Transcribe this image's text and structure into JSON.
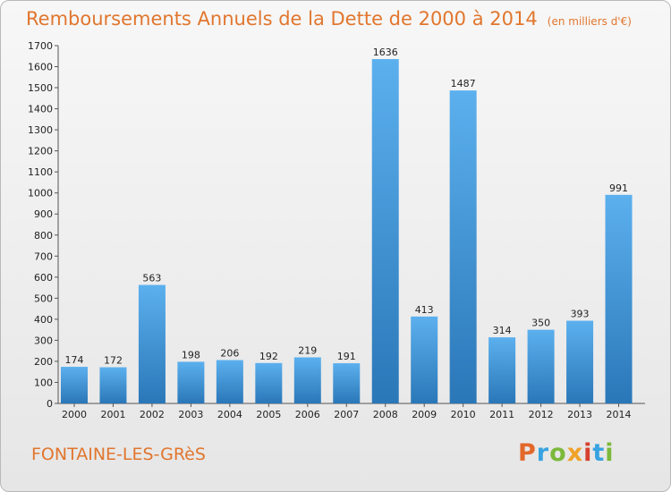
{
  "header": {
    "title": "Remboursements Annuels de la Dette de 2000 à 2014",
    "unit": "(en milliers d'€)"
  },
  "footer": {
    "place": "FONTAINE-LES-GRèS",
    "logo": "Proxiti"
  },
  "colors": {
    "title": "#e1762e",
    "bar_top": "#5cb0ee",
    "bar_bottom": "#2a77b8",
    "logo_letters": [
      "#e2682b",
      "#37a3e0",
      "#7cb93b",
      "#f0a229",
      "#d6402e",
      "#37a3e0",
      "#7cb93b"
    ]
  },
  "chart_data": {
    "type": "bar",
    "categories": [
      "2000",
      "2001",
      "2002",
      "2003",
      "2004",
      "2005",
      "2006",
      "2007",
      "2008",
      "2009",
      "2010",
      "2011",
      "2012",
      "2013",
      "2014"
    ],
    "values": [
      174,
      172,
      563,
      198,
      206,
      192,
      219,
      191,
      1636,
      413,
      1487,
      314,
      350,
      393,
      991
    ],
    "ylim": [
      0,
      1700
    ],
    "yticks": [
      0,
      100,
      200,
      300,
      400,
      500,
      600,
      700,
      800,
      900,
      1000,
      1100,
      1200,
      1300,
      1400,
      1500,
      1600,
      1700
    ],
    "grid": false,
    "title": "Remboursements Annuels de la Dette de 2000 à 2014",
    "xlabel": "",
    "ylabel": ""
  }
}
